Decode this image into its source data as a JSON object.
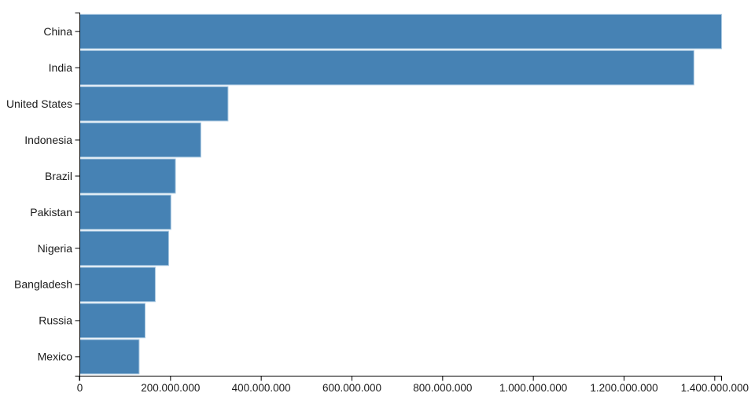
{
  "figure": {
    "background": "#ffffff",
    "description": "Horizontal bar chart of the ten most populous countries"
  },
  "chart_data": {
    "type": "bar",
    "orientation": "horizontal",
    "title": "",
    "xlabel": "",
    "ylabel": "",
    "categories": [
      "China",
      "India",
      "United States",
      "Indonesia",
      "Brazil",
      "Pakistan",
      "Nigeria",
      "Bangladesh",
      "Russia",
      "Mexico"
    ],
    "values": [
      1415045928,
      1354051854,
      326766748,
      266794980,
      210867954,
      200813818,
      195875237,
      166368149,
      143964709,
      130759074
    ],
    "xlim": [
      0,
      1415045928
    ],
    "x_ticks": [
      0,
      200000000,
      400000000,
      600000000,
      800000000,
      1000000000,
      1200000000,
      1400000000
    ],
    "x_tick_labels": [
      "0",
      "200.000.000",
      "400.000.000",
      "600.000.000",
      "800.000.000",
      "1.000.000.000",
      "1.200.000.000",
      "1.400.000.000"
    ],
    "grid": false,
    "legend": null,
    "colors": {
      "bar_fill": "#4682b4",
      "bar_stroke": "#a9c8e1",
      "axis_line": "#000000",
      "tick_text": "#1a1a1a"
    }
  }
}
